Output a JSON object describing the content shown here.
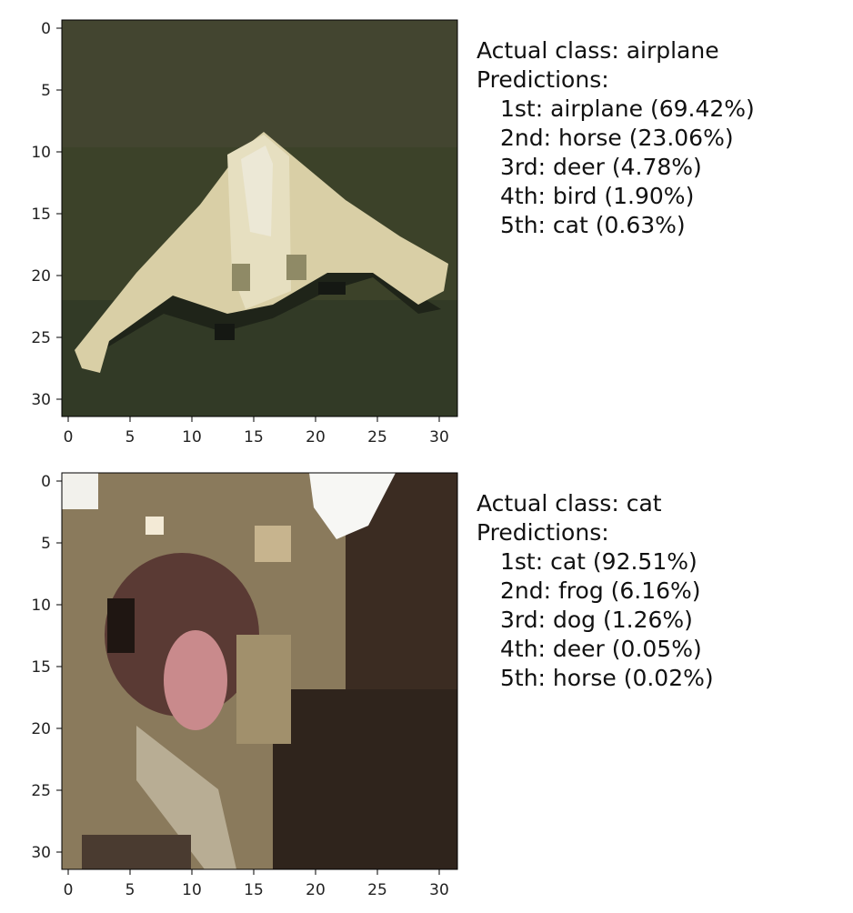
{
  "panels": [
    {
      "actual_label": "Actual class: airplane",
      "predictions_label": "Predictions:",
      "predictions": [
        "1st: airplane (69.42%)",
        "2nd: horse (23.06%)",
        "3rd: deer (4.78%)",
        "4th: bird (1.90%)",
        "5th: cat (0.63%)"
      ]
    },
    {
      "actual_label": "Actual class: cat",
      "predictions_label": "Predictions:",
      "predictions": [
        "1st: cat (92.51%)",
        "2nd: frog (6.16%)",
        "3rd: dog (1.26%)",
        "4th: deer (0.05%)",
        "5th: horse (0.02%)"
      ]
    }
  ],
  "axes": {
    "x_ticks": [
      "0",
      "5",
      "10",
      "15",
      "20",
      "25",
      "30"
    ],
    "y_ticks": [
      "0",
      "5",
      "10",
      "15",
      "20",
      "25",
      "30"
    ]
  }
}
